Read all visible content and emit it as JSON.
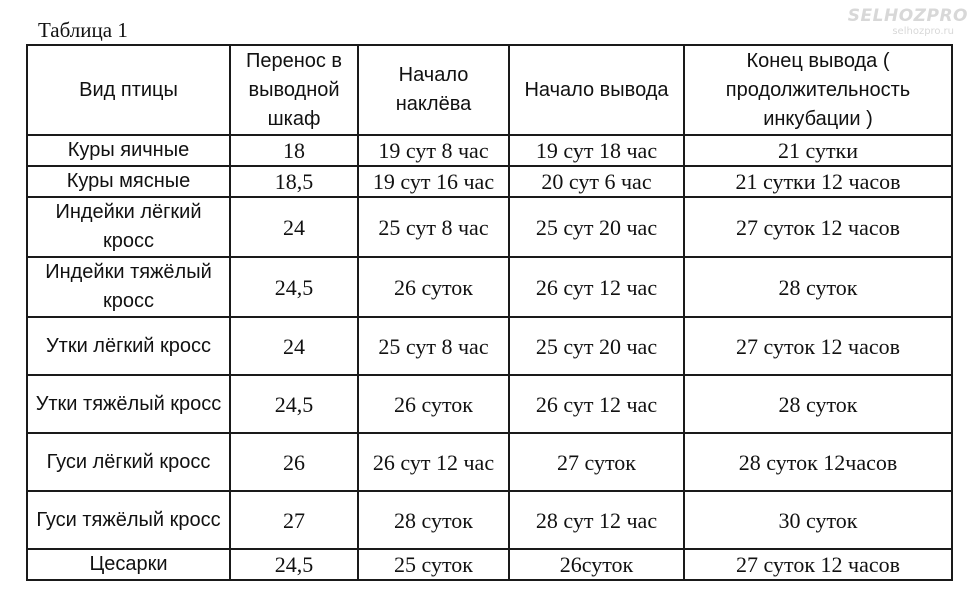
{
  "caption": "Таблица 1",
  "watermark": {
    "main": "SELHOZPRO",
    "sub": "selhozpro.ru"
  },
  "table": {
    "headers": [
      "Вид птицы",
      "Перенос в выводной шкаф",
      "Начало наклёва",
      "Начало вывода",
      "Конец вывода ( продолжительность инкубации )"
    ],
    "rows": [
      [
        "Куры яичные",
        "18",
        "19 сут 8 час",
        "19 сут 18 час",
        "21 сутки"
      ],
      [
        "Куры мясные",
        "18,5",
        "19 сут 16 час",
        "20 сут 6 час",
        "21 сутки 12 часов"
      ],
      [
        "Индейки лёгкий кросс",
        "24",
        "25 сут 8 час",
        "25 сут 20 час",
        "27 суток 12 часов"
      ],
      [
        "Индейки тяжёлый кросс",
        "24,5",
        "26 суток",
        "26 сут 12 час",
        "28 суток"
      ],
      [
        "Утки лёгкий кросс",
        "24",
        "25 сут 8 час",
        "25 сут 20 час",
        "27 суток 12 часов"
      ],
      [
        "Утки тяжёлый кросс",
        "24,5",
        "26 суток",
        "26 сут 12 час",
        "28 суток"
      ],
      [
        "Гуси лёгкий кросс",
        "26",
        "26 сут 12 час",
        "27 суток",
        "28 суток 12часов"
      ],
      [
        "Гуси тяжёлый кросс",
        "27",
        "28 суток",
        "28 сут 12 час",
        "30 суток"
      ],
      [
        "Цесарки",
        "24,5",
        "25 суток",
        "26суток",
        "27 суток 12 часов"
      ]
    ]
  }
}
